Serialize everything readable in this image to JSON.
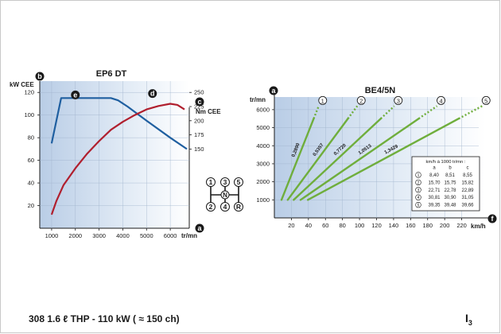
{
  "footer": {
    "caption": "308 1.6 ℓ THP - 110 kW ( ≈ 150 ch)",
    "page_letter": "I",
    "page_sub": "3"
  },
  "chart_data": [
    {
      "type": "line",
      "title": "EP6 DT",
      "xunit": "tr/mn",
      "x_ticks": [
        1000,
        2000,
        3000,
        4000,
        5000,
        6000
      ],
      "xlim": [
        500,
        6800
      ],
      "left_axis": {
        "badge": "b",
        "label": "kW CEE",
        "ticks": [
          20,
          40,
          60,
          80,
          100,
          120
        ],
        "ylim": [
          0,
          130
        ]
      },
      "right_axis": {
        "badge": "c",
        "label": "Nm CEE",
        "ticks": [
          150,
          175,
          200,
          225,
          250
        ],
        "ylim": [
          10,
          270
        ]
      },
      "x_badge": "a",
      "series": [
        {
          "label": "e",
          "axis": "right",
          "color": "#1f5fa0",
          "x": [
            1000,
            1400,
            2000,
            3000,
            3500,
            3800,
            4200,
            5000,
            6000,
            6700
          ],
          "y": [
            160,
            240,
            240,
            240,
            240,
            236,
            225,
            200,
            170,
            150
          ]
        },
        {
          "label": "d",
          "axis": "left",
          "color": "#b01f2e",
          "x": [
            1000,
            1200,
            1500,
            2000,
            2500,
            3000,
            3500,
            4000,
            4500,
            5000,
            5500,
            6000,
            6300,
            6600
          ],
          "y": [
            12,
            24,
            38,
            53,
            66,
            77,
            87,
            94,
            100,
            105,
            108,
            110,
            109,
            105
          ]
        }
      ]
    },
    {
      "type": "line",
      "title": "BE4/5N",
      "y_unit": "tr/mn",
      "y_badge": "a",
      "y_ticks": [
        1000,
        2000,
        3000,
        4000,
        5000,
        6000
      ],
      "ylim": [
        0,
        6700
      ],
      "x_unit": "km/h",
      "x_badge": "f",
      "x_ticks": [
        20,
        40,
        60,
        80,
        100,
        120,
        140,
        160,
        180,
        200,
        220
      ],
      "xlim": [
        0,
        240
      ],
      "series": [
        {
          "gear": "1",
          "ratio": "0,2890",
          "kmh_per_1000": 8.4,
          "color": "#6fae3c"
        },
        {
          "gear": "2",
          "ratio": "0,5357",
          "kmh_per_1000": 15.7,
          "color": "#6fae3c"
        },
        {
          "gear": "3",
          "ratio": "0,7720",
          "kmh_per_1000": 22.71,
          "color": "#6fae3c"
        },
        {
          "gear": "4",
          "ratio": "1,0513",
          "kmh_per_1000": 30.81,
          "color": "#6fae3c"
        },
        {
          "gear": "5",
          "ratio": "1,3429",
          "kmh_per_1000": 39.35,
          "color": "#6fae3c"
        }
      ],
      "table": {
        "title": "km/h à 1000 tr/mn :",
        "columns": [
          "a",
          "b",
          "c"
        ],
        "rows": [
          {
            "gear": "1",
            "values": [
              "8,40",
              "8,51",
              "8,55"
            ]
          },
          {
            "gear": "2",
            "values": [
              "15,70",
              "15,75",
              "15,82"
            ]
          },
          {
            "gear": "3",
            "values": [
              "22,71",
              "22,78",
              "22,89"
            ]
          },
          {
            "gear": "4",
            "values": [
              "30,81",
              "30,90",
              "31,05"
            ]
          },
          {
            "gear": "5",
            "values": [
              "39,35",
              "39,48",
              "39,66"
            ]
          }
        ]
      }
    }
  ],
  "shift_pattern": {
    "top": [
      "1",
      "3",
      "5"
    ],
    "bottom": [
      "2",
      "4",
      "R"
    ],
    "neutral": "N"
  }
}
